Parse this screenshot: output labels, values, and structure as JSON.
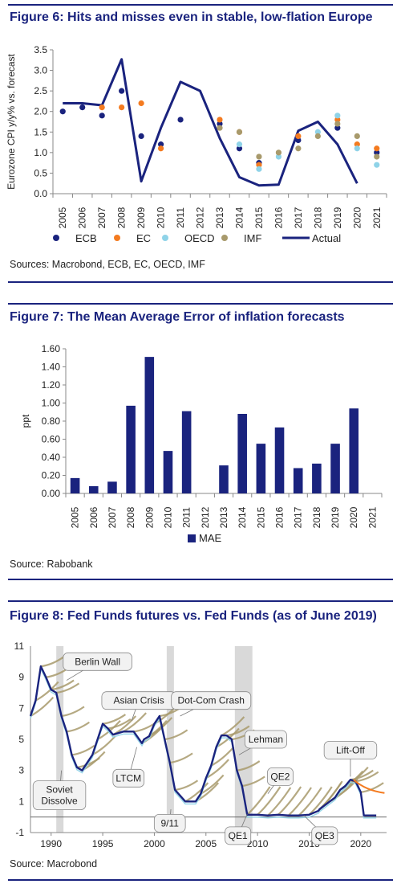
{
  "colors": {
    "ecb": "#1a237e",
    "ec": "#f47b20",
    "oecd": "#8fd3e8",
    "imf": "#a89a6c",
    "actual": "#1a237e",
    "bar": "#1a237e",
    "rule": "#1a237e"
  },
  "fig6": {
    "title": "Figure 6: Hits and misses even in stable, low-flation Europe",
    "source": "Sources: Macrobond, ECB, EC, OECD, IMF"
  },
  "fig7": {
    "title": "Figure 7: The Mean Average Error of inflation forecasts",
    "source": "Source: Rabobank"
  },
  "fig8": {
    "title": "Figure 8: Fed Funds futures vs. Fed Funds (as of June 2019)",
    "source": "Source: Macrobond"
  },
  "chart_data": [
    {
      "type": "line",
      "ylabel": "Eurozone CPI y/y% vs. forecast",
      "ylim": [
        0,
        3.5
      ],
      "yticks": [
        "0.0",
        "0.5",
        "1.0",
        "1.5",
        "2.0",
        "2.5",
        "3.0",
        "3.5"
      ],
      "categories": [
        "2005",
        "2006",
        "2007",
        "2008",
        "2009",
        "2010",
        "2011",
        "2012",
        "2013",
        "2014",
        "2015",
        "2016",
        "2017",
        "2018",
        "2019",
        "2020",
        "2021"
      ],
      "legend": [
        "ECB",
        "EC",
        "OECD",
        "IMF",
        "Actual"
      ],
      "series": [
        {
          "name": "Actual",
          "kind": "line",
          "x": [
            2005,
            2006,
            2007,
            2008,
            2009,
            2010,
            2011,
            2012,
            2013,
            2014,
            2015,
            2016,
            2017,
            2018,
            2019,
            2020
          ],
          "values": [
            2.2,
            2.2,
            2.15,
            3.27,
            0.3,
            1.6,
            2.72,
            2.5,
            1.35,
            0.4,
            0.2,
            0.22,
            1.53,
            1.75,
            1.2,
            0.25
          ]
        },
        {
          "name": "ECB",
          "kind": "dots",
          "x": [
            2005,
            2006,
            2007,
            2008,
            2009,
            2010,
            2011,
            2013,
            2014,
            2015,
            2017,
            2019,
            2021
          ],
          "values": [
            2.0,
            2.1,
            1.9,
            2.5,
            1.4,
            1.2,
            1.8,
            1.7,
            1.1,
            0.75,
            1.3,
            1.6,
            1.0
          ]
        },
        {
          "name": "EC",
          "kind": "dots",
          "x": [
            2007,
            2008,
            2009,
            2010,
            2013,
            2014,
            2015,
            2017,
            2019,
            2020,
            2021
          ],
          "values": [
            2.1,
            2.1,
            2.2,
            1.1,
            1.8,
            1.5,
            0.7,
            1.4,
            1.8,
            1.2,
            1.1
          ]
        },
        {
          "name": "OECD",
          "kind": "dots",
          "x": [
            2014,
            2015,
            2016,
            2018,
            2019,
            2020,
            2021
          ],
          "values": [
            1.2,
            0.6,
            0.9,
            1.5,
            1.9,
            1.1,
            0.7
          ]
        },
        {
          "name": "IMF",
          "kind": "dots",
          "x": [
            2013,
            2014,
            2015,
            2016,
            2017,
            2018,
            2019,
            2020,
            2021
          ],
          "values": [
            1.6,
            1.5,
            0.9,
            1.0,
            1.1,
            1.4,
            1.7,
            1.4,
            0.9
          ]
        }
      ]
    },
    {
      "type": "bar",
      "ylabel": "ppt",
      "ylim": [
        0,
        1.6
      ],
      "yticks": [
        "0.00",
        "0.20",
        "0.40",
        "0.60",
        "0.80",
        "1.00",
        "1.20",
        "1.40",
        "1.60"
      ],
      "categories": [
        "2005",
        "2006",
        "2007",
        "2008",
        "2009",
        "2010",
        "2011",
        "2012",
        "2013",
        "2014",
        "2015",
        "2016",
        "2017",
        "2018",
        "2019",
        "2020",
        "2021"
      ],
      "legend": [
        "MAE"
      ],
      "series": [
        {
          "name": "MAE",
          "values": [
            0.17,
            0.08,
            0.13,
            0.97,
            1.51,
            0.47,
            0.91,
            0,
            0.31,
            0.88,
            0.55,
            0.73,
            0.28,
            0.33,
            0.55,
            0.94,
            0
          ]
        }
      ]
    },
    {
      "type": "line",
      "ylim": [
        -1,
        11
      ],
      "xlim": [
        1988,
        2022.5
      ],
      "yticks": [
        "-1",
        "1",
        "3",
        "5",
        "7",
        "9",
        "11"
      ],
      "xticks": [
        "1990",
        "1995",
        "2000",
        "2005",
        "2010",
        "2015",
        "2020"
      ],
      "shaded_periods": [
        [
          1990.5,
          1991.2
        ],
        [
          2001.2,
          2001.9
        ],
        [
          2007.8,
          2009.5
        ]
      ],
      "annotations": [
        "Berlin Wall",
        "Asian Crisis",
        "Dot-Com Crash",
        "Lehman",
        "Lift-Off",
        "QE2",
        "Soviet Dissolve",
        "LTCM",
        "9/11",
        "QE1",
        "QE3"
      ],
      "series": [
        {
          "name": "Fed Funds",
          "x": [
            1988,
            1988.5,
            1989,
            1989.5,
            1990,
            1990.5,
            1991,
            1991.5,
            1992,
            1992.5,
            1993,
            1994,
            1994.5,
            1995,
            1995.5,
            1996,
            1997,
            1998,
            1998.8,
            1999,
            1999.5,
            2000,
            2000.5,
            2001,
            2001.5,
            2002,
            2003,
            2004,
            2004.5,
            2005,
            2005.5,
            2006,
            2006.5,
            2007,
            2007.5,
            2008,
            2008.5,
            2009,
            2010,
            2011,
            2012,
            2013,
            2014,
            2015,
            2015.9,
            2016,
            2017,
            2017.5,
            2018,
            2018.5,
            2019,
            2019.5,
            2020,
            2020.3,
            2021,
            2021.5
          ],
          "values": [
            6.5,
            7.5,
            9.7,
            9.0,
            8.2,
            8.0,
            6.5,
            5.5,
            4.0,
            3.2,
            3.0,
            4.0,
            5.0,
            6.0,
            5.7,
            5.3,
            5.5,
            5.5,
            4.75,
            5.0,
            5.2,
            6.0,
            6.5,
            5.0,
            3.5,
            1.75,
            1.0,
            1.0,
            1.5,
            2.5,
            3.3,
            4.5,
            5.25,
            5.25,
            5.0,
            3.0,
            2.0,
            0.15,
            0.15,
            0.1,
            0.15,
            0.1,
            0.1,
            0.15,
            0.4,
            0.5,
            1.0,
            1.25,
            1.75,
            2.0,
            2.4,
            2.3,
            1.6,
            0.1,
            0.1,
            0.1
          ]
        }
      ]
    }
  ]
}
